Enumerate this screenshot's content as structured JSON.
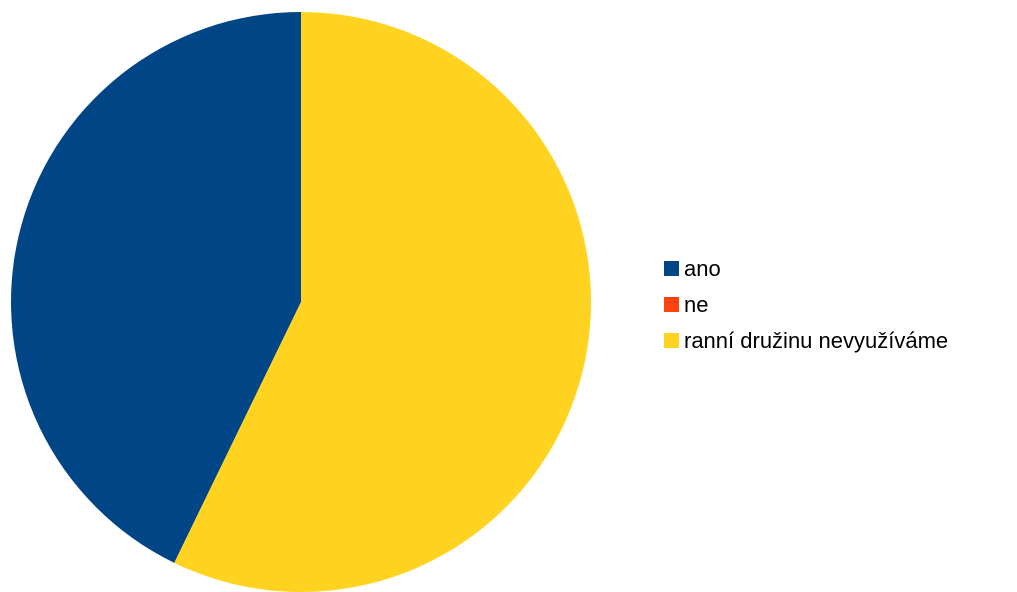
{
  "chart_data": {
    "type": "pie",
    "title": "",
    "categories": [
      "ano",
      "ne",
      "ranní družinu nevyužíváme"
    ],
    "values": [
      42.8,
      0,
      57.2
    ],
    "colors": [
      "#004586",
      "#ff420e",
      "#ffd320"
    ],
    "start_angle": "12 o'clock",
    "direction": "counter-clockwise",
    "legend": {
      "position": "right",
      "items": [
        {
          "label": "ano",
          "color": "#004586"
        },
        {
          "label": "ne",
          "color": "#ff420e"
        },
        {
          "label": "ranní družinu nevyužíváme",
          "color": "#ffd320"
        }
      ]
    }
  }
}
